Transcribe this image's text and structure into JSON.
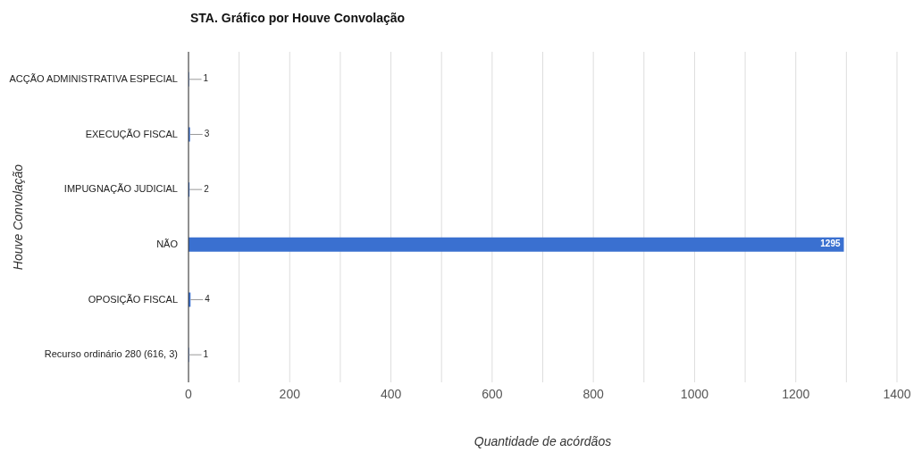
{
  "chart_data": {
    "type": "bar",
    "orientation": "horizontal",
    "title": "STA. Gráfico por Houve Convolação",
    "xlabel": "Quantidade de acórdãos",
    "ylabel": "Houve Convolação",
    "categories": [
      "ACÇÃO ADMINISTRATIVA ESPECIAL",
      "EXECUÇÃO FISCAL",
      "IMPUGNAÇÃO JUDICIAL",
      "NÃO",
      "OPOSIÇÃO FISCAL",
      "Recurso ordinário 280 (616, 3)"
    ],
    "values": [
      1,
      3,
      2,
      1295,
      4,
      1
    ],
    "color": "#3a70d0",
    "data_labels": true,
    "grid": "x",
    "xlim": [
      0,
      1400
    ],
    "xticks": [
      0,
      {
        "value": 100,
        "label": null
      },
      200,
      {
        "value": 300,
        "label": null
      },
      400,
      {
        "value": 500,
        "label": null
      },
      600,
      {
        "value": 700,
        "label": null
      },
      800,
      {
        "value": 900,
        "label": null
      },
      1000,
      {
        "value": 1100,
        "label": null
      },
      1200,
      {
        "value": 1300,
        "label": null
      },
      1400
    ]
  }
}
